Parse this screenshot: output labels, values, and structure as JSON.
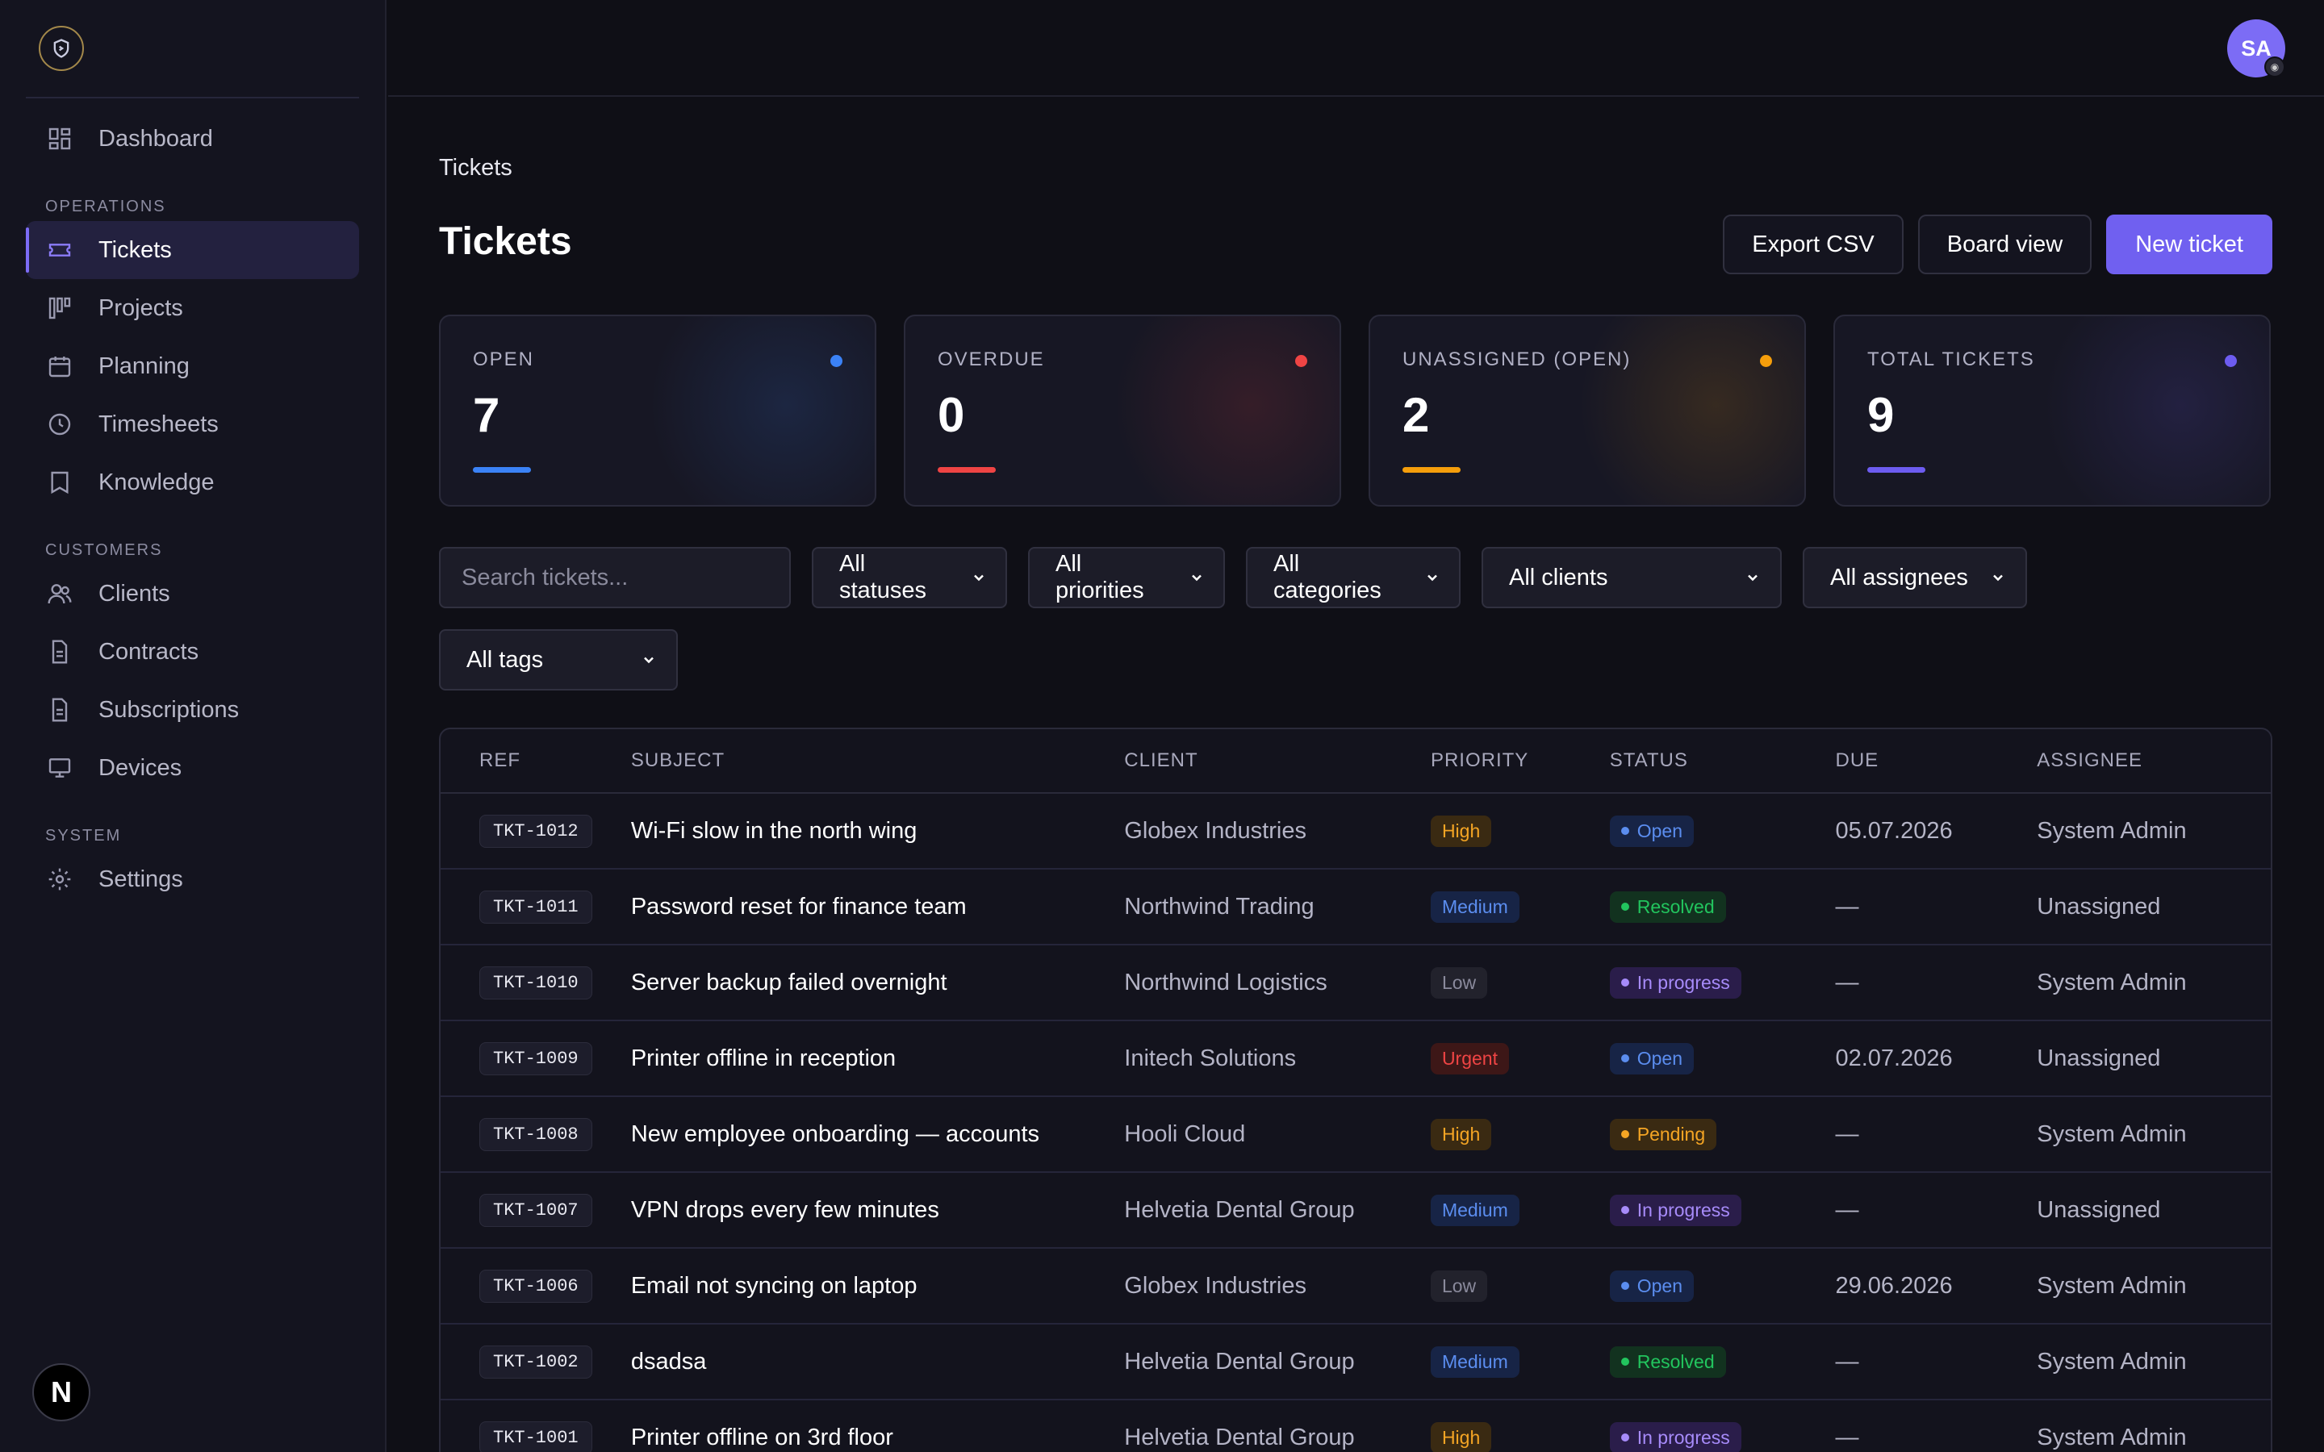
{
  "sidebar": {
    "logo_icon": "shield-icon",
    "items": [
      {
        "label": "Dashboard",
        "icon": "dashboard-icon"
      },
      {
        "label": "Tickets",
        "icon": "ticket-icon",
        "active": true
      },
      {
        "label": "Projects",
        "icon": "kanban-icon"
      },
      {
        "label": "Planning",
        "icon": "calendar-icon"
      },
      {
        "label": "Timesheets",
        "icon": "clock-icon"
      },
      {
        "label": "Knowledge",
        "icon": "book-icon"
      },
      {
        "label": "Clients",
        "icon": "users-icon"
      },
      {
        "label": "Contracts",
        "icon": "document-icon"
      },
      {
        "label": "Subscriptions",
        "icon": "document-icon"
      },
      {
        "label": "Devices",
        "icon": "monitor-icon"
      },
      {
        "label": "Settings",
        "icon": "gear-icon"
      }
    ],
    "sections": {
      "operations": "OPERATIONS",
      "customers": "CUSTOMERS",
      "system": "SYSTEM"
    },
    "next_badge": "N"
  },
  "topbar": {
    "avatar_initials": "SA"
  },
  "main": {
    "breadcrumb": "Tickets",
    "title": "Tickets",
    "actions": {
      "export": "Export CSV",
      "board": "Board view",
      "new": "New ticket"
    },
    "cards": [
      {
        "label": "OPEN",
        "value": "7",
        "color": "#3b82f6"
      },
      {
        "label": "OVERDUE",
        "value": "0",
        "color": "#ef4444"
      },
      {
        "label": "UNASSIGNED (OPEN)",
        "value": "2",
        "color": "#f59e0b"
      },
      {
        "label": "TOTAL TICKETS",
        "value": "9",
        "color": "#6d5cf0"
      }
    ],
    "filters": {
      "search_placeholder": "Search tickets...",
      "statuses": "All statuses",
      "priorities": "All priorities",
      "categories": "All categories",
      "clients": "All clients",
      "assignees": "All assignees",
      "tags": "All tags"
    },
    "table": {
      "headers": {
        "ref": "REF",
        "subject": "SUBJECT",
        "client": "CLIENT",
        "priority": "PRIORITY",
        "status": "STATUS",
        "due": "DUE",
        "assignee": "ASSIGNEE"
      },
      "rows": [
        {
          "ref": "TKT-1012",
          "subject": "Wi-Fi slow in the north wing",
          "client": "Globex Industries",
          "priority": "High",
          "status": "Open",
          "due": "05.07.2026",
          "assignee": "System Admin"
        },
        {
          "ref": "TKT-1011",
          "subject": "Password reset for finance team",
          "client": "Northwind Trading",
          "priority": "Medium",
          "status": "Resolved",
          "due": "—",
          "assignee": "Unassigned"
        },
        {
          "ref": "TKT-1010",
          "subject": "Server backup failed overnight",
          "client": "Northwind Logistics",
          "priority": "Low",
          "status": "In progress",
          "due": "—",
          "assignee": "System Admin"
        },
        {
          "ref": "TKT-1009",
          "subject": "Printer offline in reception",
          "client": "Initech Solutions",
          "priority": "Urgent",
          "status": "Open",
          "due": "02.07.2026",
          "assignee": "Unassigned"
        },
        {
          "ref": "TKT-1008",
          "subject": "New employee onboarding — accounts",
          "client": "Hooli Cloud",
          "priority": "High",
          "status": "Pending",
          "due": "—",
          "assignee": "System Admin"
        },
        {
          "ref": "TKT-1007",
          "subject": "VPN drops every few minutes",
          "client": "Helvetia Dental Group",
          "priority": "Medium",
          "status": "In progress",
          "due": "—",
          "assignee": "Unassigned"
        },
        {
          "ref": "TKT-1006",
          "subject": "Email not syncing on laptop",
          "client": "Globex Industries",
          "priority": "Low",
          "status": "Open",
          "due": "29.06.2026",
          "assignee": "System Admin"
        },
        {
          "ref": "TKT-1002",
          "subject": "dsadsa",
          "client": "Helvetia Dental Group",
          "priority": "Medium",
          "status": "Resolved",
          "due": "—",
          "assignee": "System Admin"
        },
        {
          "ref": "TKT-1001",
          "subject": "Printer offline on 3rd floor",
          "client": "Helvetia Dental Group",
          "priority": "High",
          "status": "In progress",
          "due": "—",
          "assignee": "System Admin"
        }
      ]
    }
  }
}
